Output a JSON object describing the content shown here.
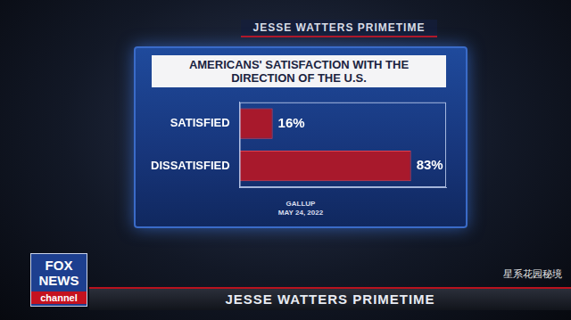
{
  "chart_data": {
    "type": "bar",
    "orientation": "horizontal",
    "title": "AMERICANS' SATISFACTION WITH THE DIRECTION OF THE U.S.",
    "categories": [
      "SATISFIED",
      "DISSATISFIED"
    ],
    "values": [
      16,
      83
    ],
    "value_labels": [
      "16%",
      "83%"
    ],
    "color": "#a8192c",
    "xlim": [
      0,
      100
    ],
    "data_labels": true,
    "tick_labels": "y",
    "grid": false,
    "annotations": [
      "GALLUP",
      "MAY 24, 2022"
    ]
  },
  "screen": {
    "show": "JESSE WATTERS PRIMETIME",
    "network": "FOX NEWS",
    "network_sub": "channel",
    "watermark": "星系花园秘境"
  }
}
